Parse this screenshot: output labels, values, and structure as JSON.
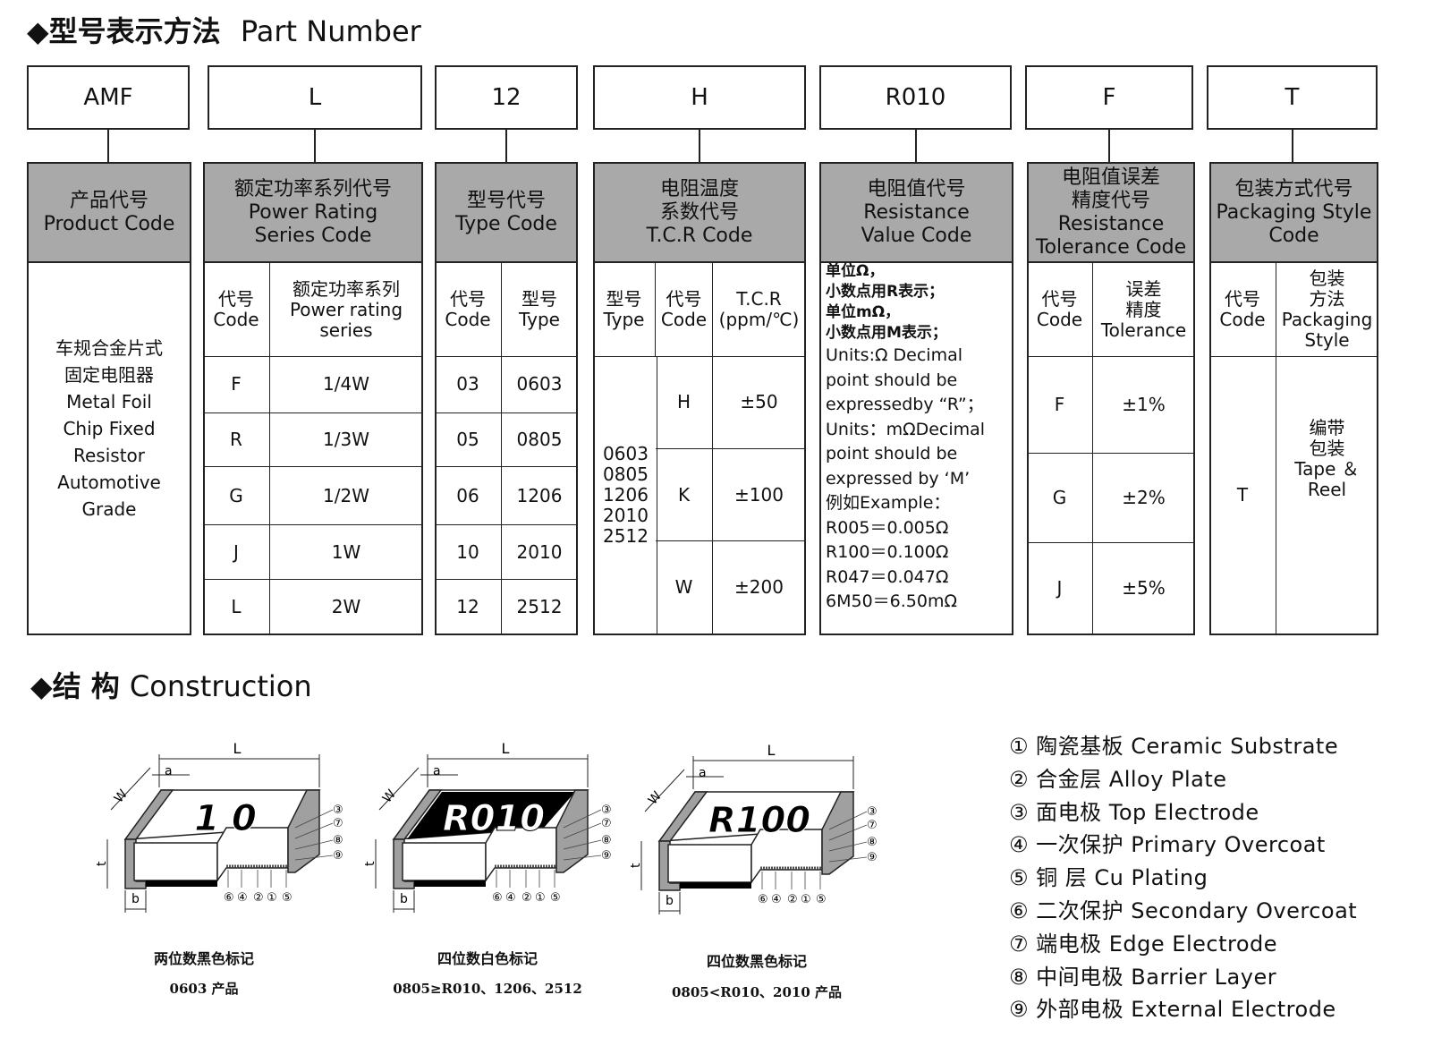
{
  "part_number": {
    "title_cn": "◆型号表示方法",
    "title_en": "Part Number"
  },
  "construction": {
    "title_cn": "◆结 构",
    "title_en": "Construction"
  },
  "columns": [
    {
      "code": "AMF",
      "header": "产品代号\nProduct Code",
      "body": [
        "车规合金片式",
        "固定电阻器",
        "Metal Foil",
        "Chip Fixed",
        "Resistor",
        "Automotive",
        "Grade"
      ]
    },
    {
      "code": "L",
      "header": "额定功率系列代号\nPower Rating\nSeries Code",
      "sub_headers": [
        "代号\nCode",
        "额定功率系列\nPower rating\nseries"
      ],
      "rows": [
        [
          "F",
          "1/4W"
        ],
        [
          "R",
          "1/3W"
        ],
        [
          "G",
          "1/2W"
        ],
        [
          "J",
          "1W"
        ],
        [
          "L",
          "2W"
        ]
      ]
    },
    {
      "code": "12",
      "header": "型号代号\nType Code",
      "sub_headers": [
        "代号\nCode",
        "型号\nType"
      ],
      "rows": [
        [
          "03",
          "0603"
        ],
        [
          "05",
          "0805"
        ],
        [
          "06",
          "1206"
        ],
        [
          "10",
          "2010"
        ],
        [
          "12",
          "2512"
        ]
      ]
    },
    {
      "code": "H",
      "header": "电阻温度\n系数代号\nT.C.R Code",
      "sub_headers": [
        "型号\nType",
        "代号\nCode",
        "T.C.R\n(ppm/℃)"
      ],
      "types": "0603\n0805\n1206\n2010\n2512",
      "rows": [
        [
          "H",
          "±50"
        ],
        [
          "K",
          "±100"
        ],
        [
          "W",
          "±200"
        ]
      ]
    },
    {
      "code": "R010",
      "header": "电阻值代号\nResistance\nValue Code",
      "body": [
        "单位Ω，",
        "小数点用R表示；",
        "单位mΩ，",
        "小数点用M表示；",
        "Units:Ω Decimal",
        "point should be",
        "expressedby “R”；",
        "Units：mΩDecimal",
        "point should be",
        "expressed by ‘M’",
        "例如Example：",
        "R005＝0.005Ω",
        "R100＝0.100Ω",
        "R047＝0.047Ω",
        "6M50＝6.50mΩ"
      ]
    },
    {
      "code": "F",
      "header": "电阻值误差\n精度代号\nResistance\nTolerance Code",
      "sub_headers": [
        "代号\nCode",
        "误差\n精度\nTolerance"
      ],
      "rows": [
        [
          "F",
          "±1%"
        ],
        [
          "G",
          "±2%"
        ],
        [
          "J",
          "±5%"
        ]
      ]
    },
    {
      "code": "T",
      "header": "包装方式代号\nPackaging Style\nCode",
      "sub_headers": [
        "代号\nCode",
        "包装\n方法\nPackaging\nStyle"
      ],
      "rows": [
        [
          "T",
          "编带\n包装\nTape ＆\nReel"
        ]
      ]
    }
  ],
  "diagrams": [
    {
      "marking": "1 0",
      "marking_style": "black-on-white",
      "caption1": "两位数黑色标记",
      "caption2": "0603 产品"
    },
    {
      "marking": "R010",
      "marking_style": "white-on-black",
      "caption1": "四位数白色标记",
      "caption2": "0805≥R010、1206、2512"
    },
    {
      "marking": "R100",
      "marking_style": "black-on-white",
      "caption1": "四位数黑色标记",
      "caption2": "0805<R010、2010 产品"
    }
  ],
  "dimension_labels": {
    "L": "L",
    "a": "a",
    "W": "W",
    "t": "t",
    "b": "b"
  },
  "callouts_right": [
    "③",
    "⑦",
    "⑧",
    "⑨"
  ],
  "callouts_bottom": [
    "⑥",
    "④",
    "②",
    "①",
    "⑤"
  ],
  "legend": [
    "① 陶瓷基板 Ceramic Substrate",
    "② 合金层  Alloy Plate",
    "③ 面电极  Top Electrode",
    "④ 一次保护 Primary Overcoat",
    "⑤ 铜   层 Cu Plating",
    "⑥ 二次保护 Secondary Overcoat",
    "⑦ 端电极 Edge Electrode",
    "⑧ 中间电极 Barrier Layer",
    "⑨ 外部电极 External Electrode"
  ],
  "colors": {
    "header_fill": "#a9a9a9",
    "end_cap": "#a0a0a0",
    "line": "#222222"
  }
}
